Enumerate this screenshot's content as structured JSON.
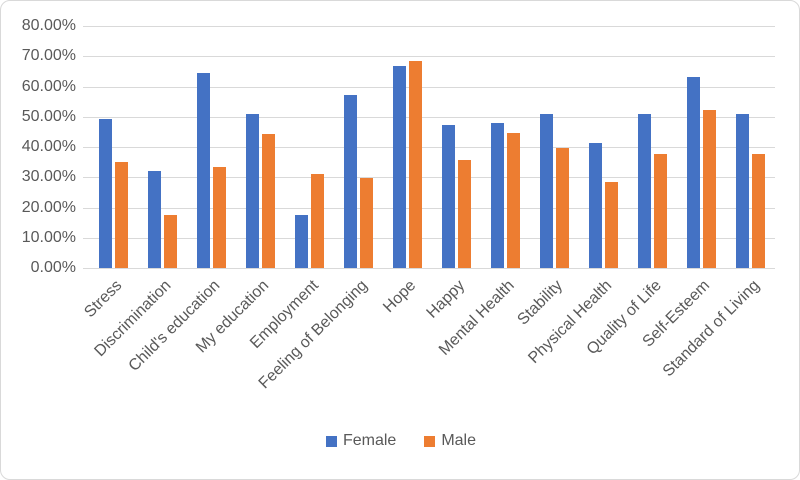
{
  "chart_data": {
    "type": "bar",
    "categories": [
      "Stress",
      "Discrimination",
      "Child's education",
      "My education",
      "Employment",
      "Feeling of Belonging",
      "Hope",
      "Happy",
      "Mental Health",
      "Stability",
      "Physical Health",
      "Quality of Life",
      "Self-Esteem",
      "Standard of Living"
    ],
    "series": [
      {
        "name": "Female",
        "color": "#4472C4",
        "values": [
          49.3,
          32.0,
          64.5,
          50.8,
          17.5,
          57.3,
          66.7,
          47.2,
          47.8,
          50.8,
          41.3,
          51.0,
          63.0,
          51.0
        ]
      },
      {
        "name": "Male",
        "color": "#ED7D31",
        "values": [
          35.0,
          17.5,
          33.3,
          44.3,
          31.0,
          29.8,
          68.5,
          35.8,
          44.8,
          39.8,
          28.3,
          37.8,
          52.3,
          37.8
        ]
      }
    ],
    "ylim": [
      0,
      80
    ],
    "ytick_step": 10,
    "ytick_labels": [
      "0.00%",
      "10.00%",
      "20.00%",
      "30.00%",
      "40.00%",
      "50.00%",
      "60.00%",
      "70.00%",
      "80.00%"
    ],
    "grid": true,
    "gridline_color": "#d9d9d9",
    "axis_text_color": "#595959",
    "legend_position": "bottom"
  }
}
